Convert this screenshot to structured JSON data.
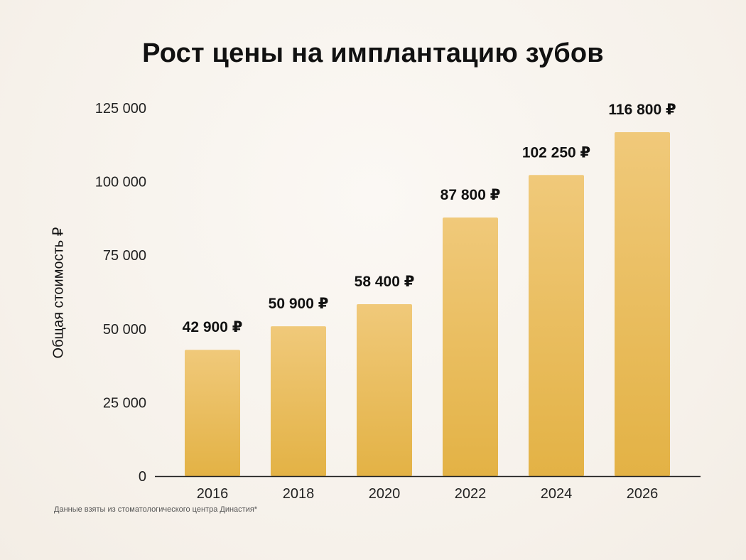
{
  "chart_data": {
    "type": "bar",
    "title": "Рост цены на имплантацию зубов",
    "ylabel": "Общая стоимость ₽",
    "xlabel": "",
    "categories": [
      "2016",
      "2018",
      "2020",
      "2022",
      "2024",
      "2026"
    ],
    "values": [
      42900,
      50900,
      58400,
      87800,
      102250,
      116800
    ],
    "value_labels": [
      "42 900 ₽",
      "50 900 ₽",
      "58 400 ₽",
      "87 800 ₽",
      "102 250 ₽",
      "116 800 ₽"
    ],
    "ylim": [
      0,
      125000
    ],
    "yticks": [
      0,
      25000,
      50000,
      75000,
      100000,
      125000
    ],
    "ytick_labels": [
      "0",
      "25 000",
      "50 000",
      "75 000",
      "100 000",
      "125 000"
    ],
    "grid": false,
    "legend": "none",
    "bar_color_top": "#f0c97a",
    "bar_color_bottom": "#e3b245",
    "axis_color": "#222222"
  },
  "footnote": "Данные взяты из стоматологического центра Династия*"
}
